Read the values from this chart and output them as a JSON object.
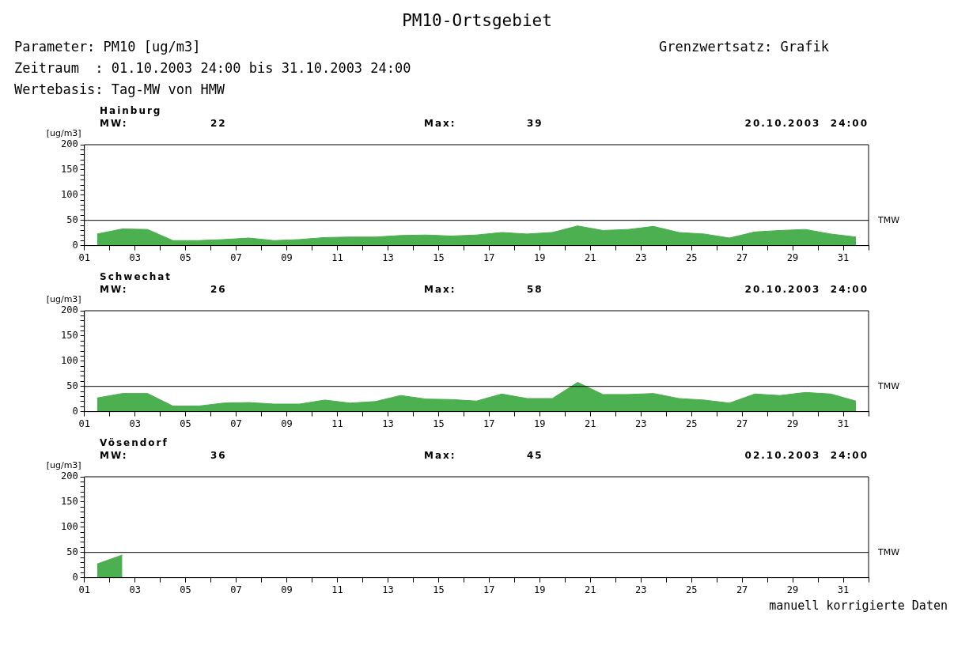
{
  "chart_data": [
    {
      "type": "other",
      "title": "PM10-Ortsgebiet",
      "annotations": [
        "Parameter: PM10 [ug/m3]",
        "Zeitraum  : 01.10.2003 24:00 bis 31.10.2003 24:00",
        "Wertebasis: Tag-MW von HMW",
        "Grenzwertsatz: Grafik"
      ]
    },
    {
      "type": "area",
      "title": "Hainburg",
      "ylabel": "[ug/m3]",
      "annotations": [
        "MW:",
        "22",
        "Max:",
        "39",
        "20.10.2003  24:00"
      ],
      "x": [
        1.5,
        2.5,
        3.5,
        4.5,
        5.5,
        6.5,
        7.5,
        8.5,
        9.5,
        10.5,
        11.5,
        12.5,
        13.5,
        14.5,
        15.5,
        16.5,
        17.5,
        18.5,
        19.5,
        20.5,
        21.5,
        22.5,
        23.5,
        24.5,
        25.5,
        26.5,
        27.5,
        28.5,
        29.5,
        30.5,
        31.5
      ],
      "series": [
        {
          "color": "#4caf50",
          "values": [
            23,
            33,
            32,
            10,
            10,
            12,
            15,
            10,
            12,
            16,
            17,
            17,
            20,
            21,
            19,
            21,
            26,
            23,
            26,
            39,
            30,
            32,
            38,
            26,
            23,
            15,
            27,
            30,
            32,
            23,
            17
          ]
        }
      ],
      "xlim": [
        1,
        32
      ],
      "ylim": [
        0,
        200
      ],
      "xticks": [
        {
          "value": 1,
          "label": "01"
        },
        {
          "value": 2,
          "label": null
        },
        {
          "value": 3,
          "label": "03"
        },
        {
          "value": 4,
          "label": null
        },
        {
          "value": 5,
          "label": "05"
        },
        {
          "value": 6,
          "label": null
        },
        {
          "value": 7,
          "label": "07"
        },
        {
          "value": 8,
          "label": null
        },
        {
          "value": 9,
          "label": "09"
        },
        {
          "value": 10,
          "label": null
        },
        11,
        {
          "value": 12,
          "label": null
        },
        13,
        {
          "value": 14,
          "label": null
        },
        15,
        {
          "value": 16,
          "label": null
        },
        17,
        {
          "value": 18,
          "label": null
        },
        19,
        {
          "value": 20,
          "label": null
        },
        21,
        {
          "value": 22,
          "label": null
        },
        23,
        {
          "value": 24,
          "label": null
        },
        25,
        {
          "value": 26,
          "label": null
        },
        27,
        {
          "value": 28,
          "label": null
        },
        29,
        {
          "value": 30,
          "label": null
        },
        31,
        {
          "value": 32,
          "label": null
        }
      ],
      "yticks": [
        0,
        {
          "value": 10,
          "label": null
        },
        {
          "value": 20,
          "label": null
        },
        {
          "value": 30,
          "label": null
        },
        {
          "value": 40,
          "label": null
        },
        50,
        {
          "value": 60,
          "label": null
        },
        {
          "value": 70,
          "label": null
        },
        {
          "value": 80,
          "label": null
        },
        {
          "value": 90,
          "label": null
        },
        100,
        {
          "value": 110,
          "label": null
        },
        {
          "value": 120,
          "label": null
        },
        {
          "value": 130,
          "label": null
        },
        {
          "value": 140,
          "label": null
        },
        150,
        {
          "value": 160,
          "label": null
        },
        {
          "value": 170,
          "label": null
        },
        {
          "value": 180,
          "label": null
        },
        {
          "value": 190,
          "label": null
        },
        200
      ],
      "ref_lines": [
        {
          "axis": "y",
          "value": 50,
          "label": "TMW",
          "color": "#000000"
        }
      ]
    },
    {
      "type": "area",
      "title": "Schwechat",
      "ylabel": "[ug/m3]",
      "annotations": [
        "MW:",
        "26",
        "Max:",
        "58",
        "20.10.2003  24:00"
      ],
      "x": [
        1.5,
        2.5,
        3.5,
        4.5,
        5.5,
        6.5,
        7.5,
        8.5,
        9.5,
        10.5,
        11.5,
        12.5,
        13.5,
        14.5,
        15.5,
        16.5,
        17.5,
        18.5,
        19.5,
        20.5,
        21.5,
        22.5,
        23.5,
        24.5,
        25.5,
        26.5,
        27.5,
        28.5,
        29.5,
        30.5,
        31.5
      ],
      "series": [
        {
          "color": "#4caf50",
          "values": [
            27,
            36,
            36,
            11,
            11,
            17,
            18,
            15,
            15,
            23,
            17,
            20,
            32,
            25,
            24,
            21,
            35,
            26,
            26,
            58,
            34,
            34,
            36,
            26,
            23,
            17,
            35,
            32,
            38,
            35,
            21
          ]
        }
      ],
      "xlim": [
        1,
        32
      ],
      "ylim": [
        0,
        200
      ],
      "xticks": [
        {
          "value": 1,
          "label": "01"
        },
        {
          "value": 2,
          "label": null
        },
        {
          "value": 3,
          "label": "03"
        },
        {
          "value": 4,
          "label": null
        },
        {
          "value": 5,
          "label": "05"
        },
        {
          "value": 6,
          "label": null
        },
        {
          "value": 7,
          "label": "07"
        },
        {
          "value": 8,
          "label": null
        },
        {
          "value": 9,
          "label": "09"
        },
        {
          "value": 10,
          "label": null
        },
        11,
        {
          "value": 12,
          "label": null
        },
        13,
        {
          "value": 14,
          "label": null
        },
        15,
        {
          "value": 16,
          "label": null
        },
        17,
        {
          "value": 18,
          "label": null
        },
        19,
        {
          "value": 20,
          "label": null
        },
        21,
        {
          "value": 22,
          "label": null
        },
        23,
        {
          "value": 24,
          "label": null
        },
        25,
        {
          "value": 26,
          "label": null
        },
        27,
        {
          "value": 28,
          "label": null
        },
        29,
        {
          "value": 30,
          "label": null
        },
        31,
        {
          "value": 32,
          "label": null
        }
      ],
      "yticks": [
        0,
        {
          "value": 10,
          "label": null
        },
        {
          "value": 20,
          "label": null
        },
        {
          "value": 30,
          "label": null
        },
        {
          "value": 40,
          "label": null
        },
        50,
        {
          "value": 60,
          "label": null
        },
        {
          "value": 70,
          "label": null
        },
        {
          "value": 80,
          "label": null
        },
        {
          "value": 90,
          "label": null
        },
        100,
        {
          "value": 110,
          "label": null
        },
        {
          "value": 120,
          "label": null
        },
        {
          "value": 130,
          "label": null
        },
        {
          "value": 140,
          "label": null
        },
        150,
        {
          "value": 160,
          "label": null
        },
        {
          "value": 170,
          "label": null
        },
        {
          "value": 180,
          "label": null
        },
        {
          "value": 190,
          "label": null
        },
        200
      ],
      "ref_lines": [
        {
          "axis": "y",
          "value": 50,
          "label": "TMW",
          "color": "#000000"
        }
      ]
    },
    {
      "type": "area",
      "title": "Vösendorf",
      "ylabel": "[ug/m3]",
      "annotations": [
        "MW:",
        "36",
        "Max:",
        "45",
        "02.10.2003  24:00",
        "manuell korrigierte Daten"
      ],
      "series": [
        {
          "color": "#4caf50",
          "x": [
            1.5,
            2.5
          ],
          "values": [
            27,
            45
          ]
        }
      ],
      "xlim": [
        1,
        32
      ],
      "ylim": [
        0,
        200
      ],
      "xticks": [
        {
          "value": 1,
          "label": "01"
        },
        {
          "value": 2,
          "label": null
        },
        {
          "value": 3,
          "label": "03"
        },
        {
          "value": 4,
          "label": null
        },
        {
          "value": 5,
          "label": "05"
        },
        {
          "value": 6,
          "label": null
        },
        {
          "value": 7,
          "label": "07"
        },
        {
          "value": 8,
          "label": null
        },
        {
          "value": 9,
          "label": "09"
        },
        {
          "value": 10,
          "label": null
        },
        11,
        {
          "value": 12,
          "label": null
        },
        13,
        {
          "value": 14,
          "label": null
        },
        15,
        {
          "value": 16,
          "label": null
        },
        17,
        {
          "value": 18,
          "label": null
        },
        19,
        {
          "value": 20,
          "label": null
        },
        21,
        {
          "value": 22,
          "label": null
        },
        23,
        {
          "value": 24,
          "label": null
        },
        25,
        {
          "value": 26,
          "label": null
        },
        27,
        {
          "value": 28,
          "label": null
        },
        29,
        {
          "value": 30,
          "label": null
        },
        31,
        {
          "value": 32,
          "label": null
        }
      ],
      "yticks": [
        0,
        {
          "value": 10,
          "label": null
        },
        {
          "value": 20,
          "label": null
        },
        {
          "value": 30,
          "label": null
        },
        {
          "value": 40,
          "label": null
        },
        50,
        {
          "value": 60,
          "label": null
        },
        {
          "value": 70,
          "label": null
        },
        {
          "value": 80,
          "label": null
        },
        {
          "value": 90,
          "label": null
        },
        100,
        {
          "value": 110,
          "label": null
        },
        {
          "value": 120,
          "label": null
        },
        {
          "value": 130,
          "label": null
        },
        {
          "value": 140,
          "label": null
        },
        150,
        {
          "value": 160,
          "label": null
        },
        {
          "value": 170,
          "label": null
        },
        {
          "value": 180,
          "label": null
        },
        {
          "value": 190,
          "label": null
        },
        200
      ],
      "ref_lines": [
        {
          "axis": "y",
          "value": 50,
          "label": "TMW",
          "color": "#000000"
        }
      ]
    }
  ]
}
